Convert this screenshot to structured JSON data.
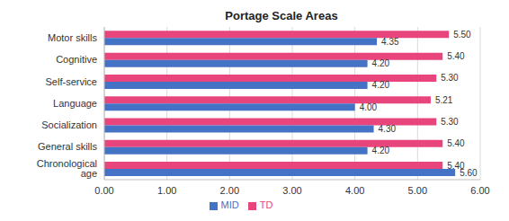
{
  "chart_data": {
    "type": "bar",
    "title": "Portage Scale Areas",
    "orientation": "horizontal",
    "categories": [
      "Motor skills",
      "Cognitive",
      "Self-service",
      "Language",
      "Socialization",
      "General skills",
      "Chronological age"
    ],
    "series": [
      {
        "name": "TD",
        "color": "#e8457d",
        "values": [
          5.5,
          5.4,
          5.3,
          5.21,
          5.3,
          5.4,
          5.4
        ],
        "value_labels": [
          "5.50",
          "5.40",
          "5.30",
          "5.21",
          "5.30",
          "5.40",
          "5.40"
        ]
      },
      {
        "name": "MID",
        "color": "#4472c4",
        "values": [
          4.35,
          4.2,
          4.2,
          4.0,
          4.3,
          4.2,
          5.6
        ],
        "value_labels": [
          "4.35",
          "4.20",
          "4.20",
          "4.00",
          "4.30",
          "4.20",
          "5.60"
        ]
      }
    ],
    "xlim": [
      0,
      6
    ],
    "xticks": [
      {
        "value": 0,
        "label": "0.00"
      },
      {
        "value": 1,
        "label": "1.00"
      },
      {
        "value": 2,
        "label": "2.00"
      },
      {
        "value": 3,
        "label": "3.00"
      },
      {
        "value": 4,
        "label": "4.00"
      },
      {
        "value": 5,
        "label": "5.00"
      },
      {
        "value": 6,
        "label": "6.00"
      }
    ],
    "grid": true,
    "data_labels": true,
    "legend": "bottom"
  }
}
